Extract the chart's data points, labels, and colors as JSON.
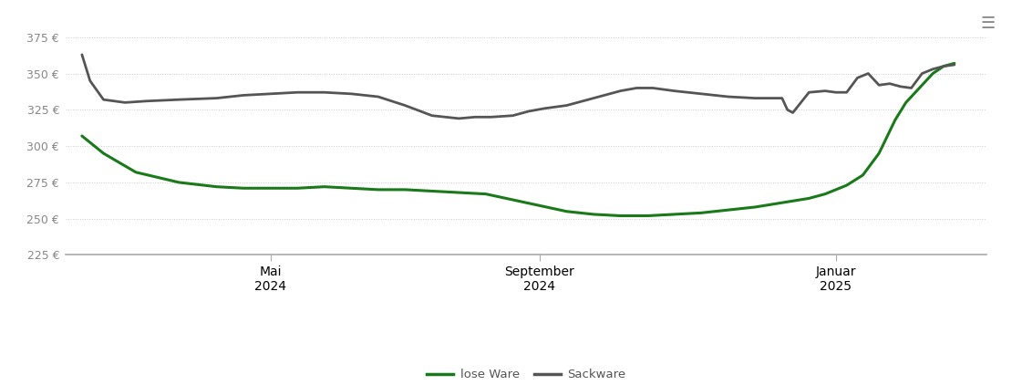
{
  "background_color": "#ffffff",
  "line_color_lose": "#1a7a1a",
  "line_color_sack": "#555555",
  "ylim": [
    215,
    390
  ],
  "yticks": [
    225,
    250,
    275,
    300,
    325,
    350,
    375
  ],
  "ytick_labels": [
    "225 €",
    "250 €",
    "275 €",
    "300 €",
    "325 €",
    "350 €",
    "375 €"
  ],
  "xtick_positions": [
    3.5,
    8.5,
    14.0
  ],
  "xtick_labels": [
    "Mai\n2024",
    "September\n2024",
    "Januar\n2025"
  ],
  "legend_labels": [
    "lose Ware",
    "Sackware"
  ],
  "hamburger_char": "☰",
  "lose_ware_x": [
    0,
    0.4,
    1.0,
    1.8,
    2.5,
    3.0,
    3.5,
    4.0,
    4.5,
    5.0,
    5.5,
    6.0,
    6.5,
    7.0,
    7.5,
    8.0,
    8.5,
    9.0,
    9.5,
    10.0,
    10.5,
    11.0,
    11.5,
    12.0,
    12.5,
    13.0,
    13.5,
    13.8,
    14.0,
    14.2,
    14.5,
    14.8,
    15.1,
    15.3,
    15.6,
    15.8,
    16.0,
    16.2
  ],
  "lose_ware_y": [
    307,
    295,
    282,
    275,
    272,
    271,
    271,
    271,
    272,
    271,
    270,
    270,
    269,
    268,
    267,
    263,
    259,
    255,
    253,
    252,
    252,
    253,
    254,
    256,
    258,
    261,
    264,
    267,
    270,
    273,
    280,
    295,
    318,
    330,
    342,
    350,
    355,
    357
  ],
  "sack_ware_x": [
    0,
    0.15,
    0.4,
    0.8,
    1.2,
    1.8,
    2.5,
    3.0,
    3.5,
    4.0,
    4.5,
    5.0,
    5.5,
    6.0,
    6.5,
    7.0,
    7.3,
    7.6,
    8.0,
    8.3,
    8.6,
    9.0,
    9.5,
    10.0,
    10.3,
    10.6,
    11.0,
    11.5,
    12.0,
    12.5,
    13.0,
    13.1,
    13.2,
    13.5,
    13.8,
    14.0,
    14.2,
    14.4,
    14.6,
    14.8,
    15.0,
    15.2,
    15.4,
    15.6,
    15.8,
    16.0,
    16.2
  ],
  "sack_ware_y": [
    363,
    345,
    332,
    330,
    331,
    332,
    333,
    335,
    336,
    337,
    337,
    336,
    334,
    328,
    321,
    319,
    320,
    320,
    321,
    324,
    326,
    328,
    333,
    338,
    340,
    340,
    338,
    336,
    334,
    333,
    333,
    325,
    323,
    337,
    338,
    337,
    337,
    347,
    350,
    342,
    343,
    341,
    340,
    350,
    353,
    355,
    356
  ]
}
